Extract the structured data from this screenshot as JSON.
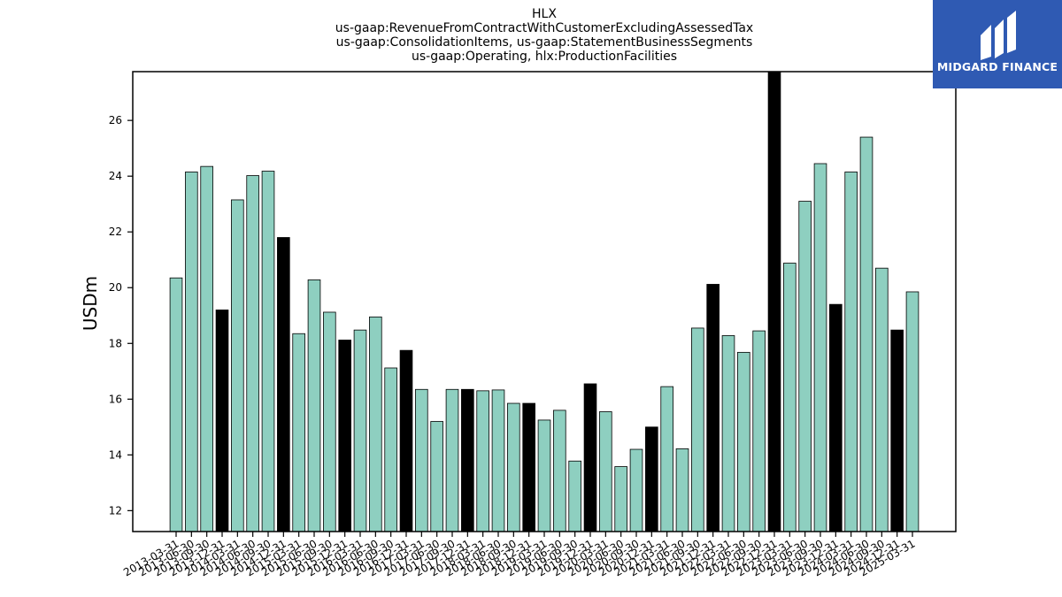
{
  "chart_data": {
    "type": "bar",
    "title_lines": [
      "HLX",
      "us-gaap:RevenueFromContractWithCustomerExcludingAssessedTax",
      "us-gaap:ConsolidationItems, us-gaap:StatementBusinessSegments",
      "us-gaap:Operating, hlx:ProductionFacilities"
    ],
    "xlabel": "",
    "ylabel": "USDm",
    "ylim": [
      11.25,
      27.75
    ],
    "yticks": [
      12,
      14,
      16,
      18,
      20,
      22,
      24,
      26
    ],
    "grid": false,
    "colors": {
      "quarter": "#8ecfc0",
      "year_end": "#000000",
      "edge": "#000000"
    },
    "categories": [
      "2013-03-31",
      "2013-06-30",
      "2013-09-30",
      "2013-12-31",
      "2014-03-31",
      "2014-06-30",
      "2014-09-30",
      "2014-12-31",
      "2015-03-31",
      "2015-06-30",
      "2015-09-30",
      "2015-12-31",
      "2016-03-31",
      "2016-06-30",
      "2016-09-30",
      "2016-12-31",
      "2017-03-31",
      "2017-06-30",
      "2017-09-30",
      "2017-12-31",
      "2018-03-31",
      "2018-06-30",
      "2018-09-30",
      "2018-12-31",
      "2019-03-31",
      "2019-06-30",
      "2019-09-30",
      "2019-12-31",
      "2020-03-31",
      "2020-06-30",
      "2020-09-30",
      "2020-12-31",
      "2021-03-31",
      "2021-06-30",
      "2021-09-30",
      "2021-12-31",
      "2022-03-31",
      "2022-06-30",
      "2022-09-30",
      "2022-12-31",
      "2023-03-31",
      "2023-06-30",
      "2023-09-30",
      "2023-12-31",
      "2024-03-31",
      "2024-06-30",
      "2024-09-30",
      "2024-12-31",
      "2025-03-31"
    ],
    "values": [
      20.35,
      24.15,
      24.35,
      19.2,
      23.15,
      24.02,
      24.18,
      21.8,
      18.35,
      20.28,
      19.12,
      18.12,
      18.48,
      18.95,
      17.12,
      17.75,
      16.35,
      15.2,
      16.35,
      16.35,
      16.3,
      16.33,
      15.85,
      15.85,
      15.25,
      15.6,
      13.78,
      16.55,
      15.55,
      13.58,
      14.2,
      15.0,
      16.45,
      14.22,
      18.55,
      20.12,
      18.28,
      17.68,
      18.45,
      27.8,
      20.88,
      23.1,
      24.45,
      19.4,
      24.15,
      25.4,
      20.7,
      18.48,
      19.85
    ],
    "year_end_flags": [
      false,
      false,
      false,
      true,
      false,
      false,
      false,
      true,
      false,
      false,
      false,
      true,
      false,
      false,
      false,
      true,
      false,
      false,
      false,
      true,
      false,
      false,
      false,
      true,
      false,
      false,
      false,
      true,
      false,
      false,
      false,
      true,
      false,
      false,
      false,
      true,
      false,
      false,
      false,
      true,
      false,
      false,
      false,
      true,
      false,
      false,
      false,
      true,
      false
    ]
  },
  "logo": {
    "text": "MIDGARD FINANCE",
    "background": "#2f5ab3"
  }
}
